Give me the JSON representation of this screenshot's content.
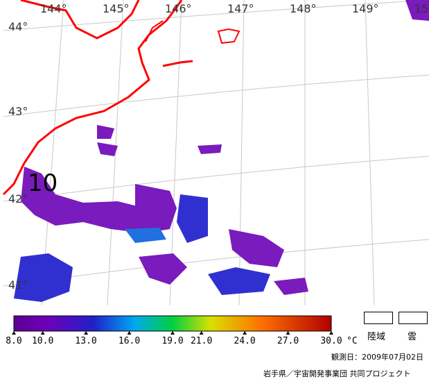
{
  "map": {
    "lon_labels": [
      "144°",
      "145°",
      "146°",
      "147°",
      "148°",
      "149°",
      "15"
    ],
    "lat_labels": [
      "44°",
      "43°",
      "42°",
      "41°"
    ],
    "contour_label": "10",
    "colors": {
      "coast": "#ff0000",
      "grid": "#c8c8c8",
      "sst_low": "#7a1bbd",
      "sst_mid": "#3030d0",
      "sst_high": "#2070e0"
    }
  },
  "colorbar": {
    "ticks": [
      "8.0",
      "10.0",
      "13.0",
      "16.0",
      "19.0",
      "21.0",
      "24.0",
      "27.0",
      "30.0"
    ],
    "unit": "°C",
    "range": [
      8.0,
      30.0
    ]
  },
  "legend": {
    "land_label": "陸域",
    "cloud_label": "雲"
  },
  "footer": {
    "observation_date": "観測日：2009年07月02日",
    "credit": "岩手県／宇宙開発事業団 共同プロジェクト"
  }
}
